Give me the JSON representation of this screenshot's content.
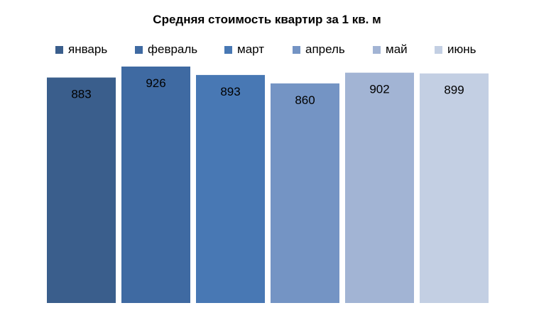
{
  "chart_data": {
    "type": "bar",
    "title": "Средняя стоимость квартир за 1 кв. м",
    "categories": [
      "январь",
      "февраль",
      "март",
      "апрель",
      "май",
      "июнь"
    ],
    "values": [
      883,
      926,
      893,
      860,
      902,
      899
    ],
    "colors": [
      "#3a5e8c",
      "#3f6aa2",
      "#4878b4",
      "#7494c4",
      "#a2b4d4",
      "#c3cfe3"
    ],
    "legend_position": "top",
    "grid": false
  }
}
